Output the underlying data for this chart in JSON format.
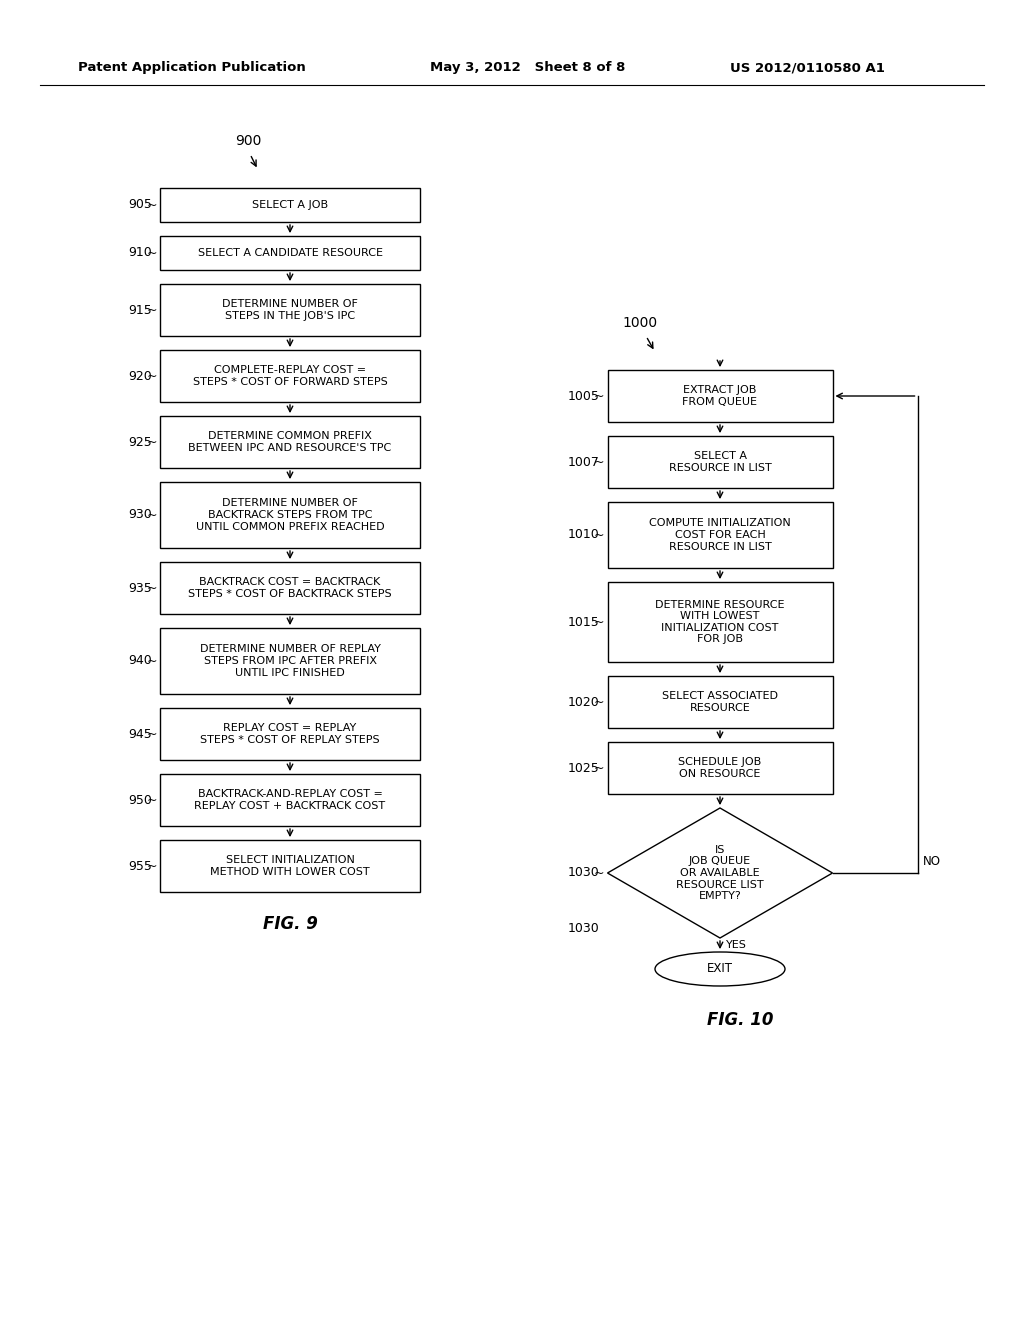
{
  "bg_color": "#ffffff",
  "header_left": "Patent Application Publication",
  "header_mid": "May 3, 2012   Sheet 8 of 8",
  "header_right": "US 2012/0110580 A1",
  "fig9_label": "900",
  "fig9_caption": "FIG. 9",
  "fig9_boxes": [
    {
      "id": "905",
      "label": "SELECT A JOB",
      "nlines": 1
    },
    {
      "id": "910",
      "label": "SELECT A CANDIDATE RESOURCE",
      "nlines": 1
    },
    {
      "id": "915",
      "label": "DETERMINE NUMBER OF\nSTEPS IN THE JOB'S IPC",
      "nlines": 2
    },
    {
      "id": "920",
      "label": "COMPLETE-REPLAY COST =\nSTEPS * COST OF FORWARD STEPS",
      "nlines": 2
    },
    {
      "id": "925",
      "label": "DETERMINE COMMON PREFIX\nBETWEEN IPC AND RESOURCE'S TPC",
      "nlines": 2
    },
    {
      "id": "930",
      "label": "DETERMINE NUMBER OF\nBACKTRACK STEPS FROM TPC\nUNTIL COMMON PREFIX REACHED",
      "nlines": 3
    },
    {
      "id": "935",
      "label": "BACKTRACK COST = BACKTRACK\nSTEPS * COST OF BACKTRACK STEPS",
      "nlines": 2
    },
    {
      "id": "940",
      "label": "DETERMINE NUMBER OF REPLAY\nSTEPS FROM IPC AFTER PREFIX\nUNTIL IPC FINISHED",
      "nlines": 3
    },
    {
      "id": "945",
      "label": "REPLAY COST = REPLAY\nSTEPS * COST OF REPLAY STEPS",
      "nlines": 2
    },
    {
      "id": "950",
      "label": "BACKTRACK-AND-REPLAY COST =\nREPLAY COST + BACKTRACK COST",
      "nlines": 2
    },
    {
      "id": "955",
      "label": "SELECT INITIALIZATION\nMETHOD WITH LOWER COST",
      "nlines": 2
    }
  ],
  "fig10_label": "1000",
  "fig10_caption": "FIG. 10",
  "fig10_elements": [
    {
      "id": "1005",
      "type": "rect",
      "label": "EXTRACT JOB\nFROM QUEUE",
      "nlines": 2
    },
    {
      "id": "1007",
      "type": "rect",
      "label": "SELECT A\nRESOURCE IN LIST",
      "nlines": 2
    },
    {
      "id": "1010",
      "type": "rect",
      "label": "COMPUTE INITIALIZATION\nCOST FOR EACH\nRESOURCE IN LIST",
      "nlines": 3
    },
    {
      "id": "1015",
      "type": "rect",
      "label": "DETERMINE RESOURCE\nWITH LOWEST\nINITIALIZATION COST\nFOR JOB",
      "nlines": 4
    },
    {
      "id": "1020",
      "type": "rect",
      "label": "SELECT ASSOCIATED\nRESOURCE",
      "nlines": 2
    },
    {
      "id": "1025",
      "type": "rect",
      "label": "SCHEDULE JOB\nON RESOURCE",
      "nlines": 2
    },
    {
      "id": "1030",
      "type": "diamond",
      "label": "IS\nJOB QUEUE\nOR AVAILABLE\nRESOURCE LIST\nEMPTY?",
      "nlines": 5
    },
    {
      "id": "exit",
      "type": "oval",
      "label": "EXIT",
      "nlines": 1
    }
  ]
}
